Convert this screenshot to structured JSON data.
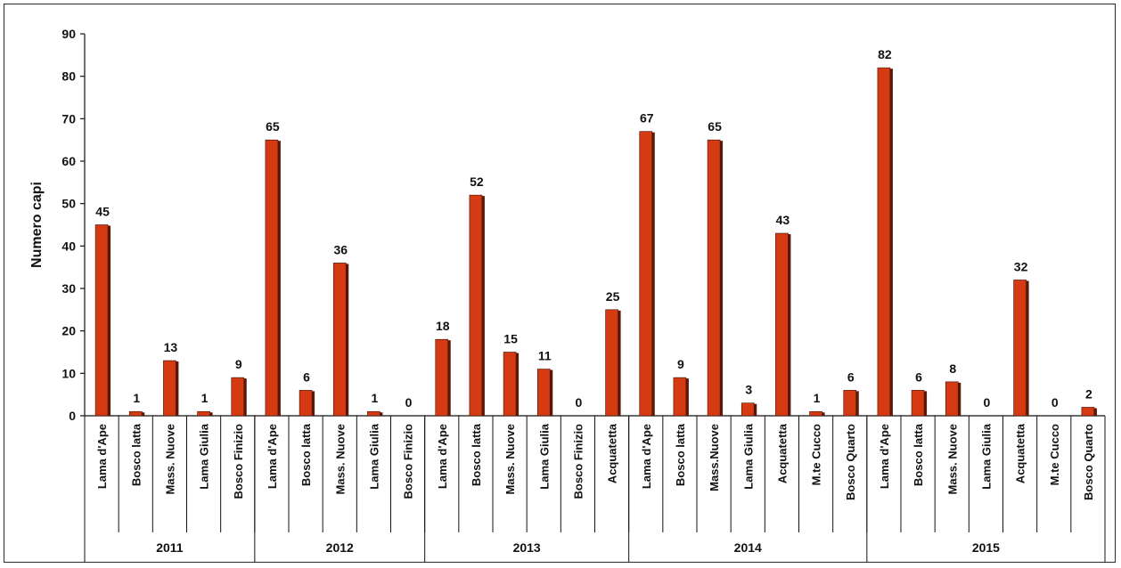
{
  "chart_data": {
    "type": "bar",
    "title": "",
    "ylabel": "Numero capi",
    "xlabel": "",
    "ylim": [
      0,
      90
    ],
    "yticks": [
      0,
      10,
      20,
      30,
      40,
      50,
      60,
      70,
      80,
      90
    ],
    "grid": false,
    "legend": "none",
    "bar_color": "#d63a12",
    "bar_shadow_color": "#5a1a08",
    "groups": [
      {
        "year": "2011",
        "categories": [
          "Lama d'Ape",
          "Bosco latta",
          "Mass. Nuove",
          "Lama Giulia",
          "Bosco Finizio"
        ],
        "values": [
          45,
          1,
          13,
          1,
          9
        ]
      },
      {
        "year": "2012",
        "categories": [
          "Lama d'Ape",
          "Bosco latta",
          "Mass. Nuove",
          "Lama Giulia",
          "Bosco Finizio"
        ],
        "values": [
          65,
          6,
          36,
          1,
          0
        ]
      },
      {
        "year": "2013",
        "categories": [
          "Lama d'Ape",
          "Bosco latta",
          "Mass. Nuove",
          "Lama Giulia",
          "Bosco Finizio",
          "Acquatetta"
        ],
        "values": [
          18,
          52,
          15,
          11,
          0,
          25
        ]
      },
      {
        "year": "2014",
        "categories": [
          "Lama d'Ape",
          "Bosco latta",
          "Mass.Nuove",
          "Lama Giulia",
          "Acquatetta",
          "M.te Cucco",
          "Bosco Quarto"
        ],
        "values": [
          67,
          9,
          65,
          3,
          43,
          1,
          6
        ]
      },
      {
        "year": "2015",
        "categories": [
          "Lama d'Ape",
          "Bosco latta",
          "Mass. Nuove",
          "Lama Giulia",
          "Acquatetta",
          "M.te Cucco",
          "Bosco Quarto"
        ],
        "values": [
          82,
          6,
          8,
          0,
          32,
          0,
          2
        ]
      }
    ]
  }
}
